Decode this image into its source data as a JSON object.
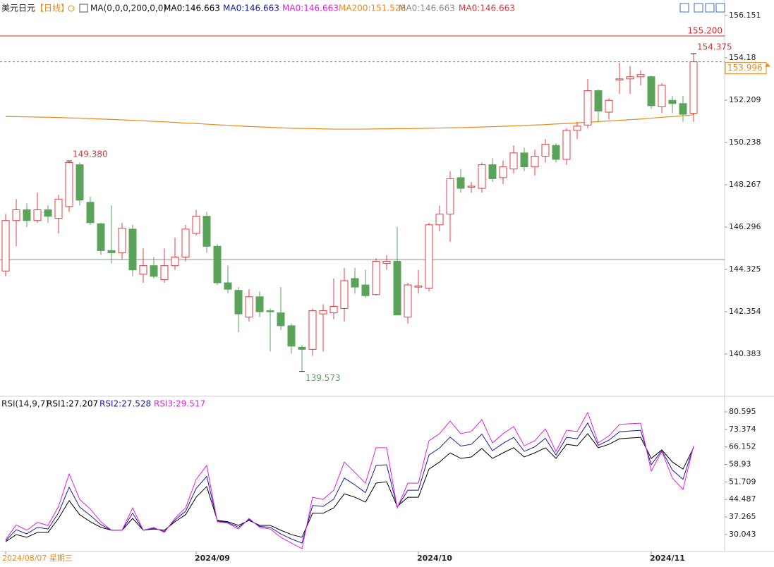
{
  "header": {
    "symbol": "美元日元",
    "period": "【日线】",
    "ma_params": "MA(0,0,0,200,0,0)",
    "ma_values": [
      {
        "label": "MA0:146.663",
        "color": "#000000"
      },
      {
        "label": "MA0:146.663",
        "color": "#1a1aa0"
      },
      {
        "label": "MA0:146.663",
        "color": "#e020e0"
      },
      {
        "label": "MA200:151.526",
        "color": "#e88a1a"
      },
      {
        "label": "MA0:146.663",
        "color": "#8a8a8a"
      },
      {
        "label": "MA0:146.663",
        "color": "#d03a3a"
      }
    ]
  },
  "chart_data": [
    {
      "type": "candlestick",
      "categories": [
        "2024/08/07 星期三",
        null,
        null,
        null,
        null,
        null,
        null,
        null,
        null,
        null,
        null,
        null,
        null,
        null,
        null,
        null,
        null,
        null,
        "2024/09",
        null,
        null,
        null,
        null,
        null,
        null,
        null,
        null,
        null,
        null,
        null,
        null,
        null,
        null,
        null,
        null,
        null,
        null,
        null,
        null,
        "2024/10",
        null,
        null,
        null,
        null,
        null,
        null,
        null,
        null,
        null,
        null,
        null,
        null,
        null,
        null,
        null,
        null,
        null,
        null,
        null,
        null,
        null,
        "2024/11",
        null,
        null,
        null,
        null
      ],
      "open": [
        144.25,
        146.6,
        147.1,
        146.6,
        147.1,
        146.7,
        147.25,
        149.2,
        147.45,
        146.45,
        145.2,
        145.1,
        146.2,
        144.1,
        144.5,
        143.85,
        144.5,
        144.9,
        146.0,
        146.8,
        145.4,
        143.7,
        143.35,
        142.1,
        143.05,
        142.4,
        142.3,
        141.7,
        140.7,
        140.6,
        142.25,
        142.3,
        142.5,
        143.9,
        143.6,
        143.15,
        144.6,
        144.7,
        142.1,
        143.5,
        143.45,
        146.4,
        146.9,
        148.6,
        148.15,
        148.1,
        149.2,
        148.6,
        149.0,
        149.75,
        149.1,
        149.6,
        150.1,
        149.45,
        150.8,
        151.05,
        152.65,
        151.65,
        153.15,
        153.2,
        153.3,
        153.3,
        151.9,
        152.2,
        152.05,
        151.6
      ],
      "high": [
        146.9,
        147.6,
        147.4,
        147.9,
        147.3,
        147.8,
        149.38,
        149.3,
        147.7,
        146.5,
        147.3,
        146.5,
        146.4,
        145.3,
        144.9,
        145.3,
        145.8,
        146.4,
        147.1,
        147.0,
        145.5,
        144.5,
        143.5,
        143.4,
        143.3,
        142.5,
        143.5,
        141.8,
        140.8,
        142.5,
        142.7,
        143.9,
        144.4,
        144.4,
        144.3,
        144.85,
        145.0,
        146.3,
        143.7,
        144.3,
        146.5,
        147.3,
        148.9,
        149.0,
        148.4,
        149.3,
        149.5,
        149.4,
        150.1,
        150.0,
        149.9,
        150.4,
        150.2,
        150.9,
        151.2,
        153.2,
        152.7,
        152.3,
        153.95,
        153.8,
        153.6,
        153.35,
        153.0,
        152.4,
        152.4,
        154.375
      ],
      "low": [
        144.0,
        145.4,
        146.3,
        146.5,
        146.5,
        146.0,
        147.0,
        147.3,
        146.4,
        145.0,
        144.6,
        144.8,
        144.0,
        143.7,
        143.9,
        143.7,
        144.3,
        144.7,
        145.9,
        145.1,
        143.6,
        143.2,
        141.4,
        141.9,
        142.1,
        140.5,
        141.5,
        140.4,
        139.573,
        140.3,
        140.5,
        142.0,
        141.9,
        143.2,
        143.0,
        143.1,
        144.3,
        142.2,
        141.8,
        143.2,
        143.3,
        146.1,
        145.6,
        147.9,
        147.9,
        147.9,
        148.4,
        148.3,
        148.8,
        148.9,
        148.7,
        149.3,
        149.3,
        149.2,
        150.4,
        150.9,
        151.2,
        151.3,
        152.5,
        152.5,
        152.9,
        151.8,
        151.6,
        151.6,
        151.2,
        151.2
      ],
      "close": [
        146.6,
        147.1,
        146.6,
        147.1,
        146.8,
        147.6,
        149.3,
        147.55,
        146.5,
        145.2,
        145.1,
        146.25,
        144.3,
        144.5,
        144.0,
        144.5,
        144.9,
        146.2,
        146.8,
        145.4,
        143.7,
        143.4,
        142.25,
        143.05,
        142.35,
        142.35,
        141.7,
        140.75,
        140.6,
        142.4,
        142.4,
        142.6,
        143.8,
        143.5,
        143.1,
        144.7,
        144.7,
        142.2,
        143.6,
        143.55,
        146.4,
        146.9,
        148.55,
        148.1,
        148.2,
        149.2,
        148.55,
        149.1,
        149.75,
        149.1,
        149.6,
        150.15,
        149.45,
        150.8,
        151.0,
        152.65,
        151.7,
        152.2,
        153.2,
        153.3,
        153.4,
        151.95,
        152.9,
        152.05,
        151.55,
        153.996
      ],
      "up_color": "#e03c3c",
      "down_color": "#5ba35b",
      "ma200": {
        "color": "#e88a1a",
        "values": [
          151.45,
          151.44,
          151.43,
          151.42,
          151.41,
          151.4,
          151.38,
          151.37,
          151.35,
          151.33,
          151.31,
          151.29,
          151.27,
          151.25,
          151.22,
          151.2,
          151.17,
          151.14,
          151.12,
          151.09,
          151.06,
          151.04,
          151.01,
          150.98,
          150.96,
          150.94,
          150.92,
          150.9,
          150.89,
          150.88,
          150.87,
          150.86,
          150.86,
          150.86,
          150.86,
          150.87,
          150.87,
          150.88,
          150.88,
          150.89,
          150.9,
          150.91,
          150.92,
          150.93,
          150.94,
          150.96,
          150.97,
          150.99,
          151.01,
          151.03,
          151.05,
          151.07,
          151.1,
          151.12,
          151.15,
          151.18,
          151.21,
          151.24,
          151.27,
          151.3,
          151.33,
          151.37,
          151.41,
          151.44,
          151.48,
          151.526
        ]
      },
      "hlines": [
        {
          "value": 155.2,
          "label": "155.200",
          "color": "#d42a2a"
        },
        {
          "value": 144.78,
          "color": "#8a8a8a"
        }
      ],
      "last_label": "153.996",
      "annotations": [
        {
          "label": "149.380",
          "value": 149.38,
          "color": "#d03a3a"
        },
        {
          "label": "139.573",
          "value": 139.573,
          "color": "#5ba35b"
        },
        {
          "label": "154.375",
          "value": 154.375,
          "color": "#d03a3a"
        }
      ],
      "ylim": [
        138.477,
        156.611
      ],
      "yticks": [
        156.151,
        154.18,
        152.209,
        150.238,
        148.267,
        146.296,
        144.325,
        142.354,
        140.383
      ]
    },
    {
      "type": "line",
      "title": "RSI(14,9,7)",
      "series": [
        {
          "name": "RSI1:27.207",
          "color": "#000000",
          "values": [
            27.1,
            30,
            28.9,
            30.9,
            30.9,
            36.7,
            44,
            38.2,
            35.3,
            33,
            31.8,
            31.8,
            36.7,
            31.8,
            32.3,
            31.8,
            35.3,
            38.2,
            45.4,
            49.8,
            35.9,
            35.3,
            33.8,
            35.9,
            33.8,
            33.8,
            31.8,
            30,
            28.9,
            38.8,
            38.8,
            41,
            46.8,
            45.4,
            43.4,
            51.2,
            51.8,
            41.6,
            45.4,
            45.4,
            57,
            59.9,
            63.7,
            61.4,
            62,
            65.5,
            61.4,
            63.7,
            65.8,
            62,
            63.7,
            65.8,
            61.4,
            67.2,
            66.6,
            71.6,
            65.8,
            67.2,
            69.5,
            69.8,
            70.1,
            61.4,
            64.9,
            59.9,
            57,
            65.8
          ]
        },
        {
          "name": "RSI2:27.528",
          "color": "#1a1aa0",
          "values": [
            27.5,
            32,
            30.3,
            33,
            32.3,
            39,
            49.5,
            41.3,
            37.9,
            34.1,
            31.8,
            31.8,
            38.8,
            31.8,
            32.6,
            31.3,
            36,
            39.6,
            49,
            54,
            35.6,
            35,
            33,
            36.3,
            33.4,
            33,
            30.3,
            28.2,
            26.5,
            42,
            41.6,
            44.6,
            53.3,
            50.5,
            47.3,
            58.5,
            58.8,
            41.3,
            48.3,
            48.3,
            62.8,
            65.7,
            70.2,
            66.5,
            67.2,
            71.4,
            64.6,
            67.6,
            70.1,
            64.3,
            66.2,
            69.7,
            62.8,
            70.1,
            69.5,
            76,
            66.8,
            68.9,
            72.4,
            72.7,
            73,
            58.8,
            64.6,
            56.6,
            52.8,
            66.2
          ]
        },
        {
          "name": "RSI3:29.517",
          "color": "#e020e0",
          "values": [
            28,
            34,
            31.8,
            35,
            33.8,
            41.6,
            55,
            44.5,
            40.5,
            35.3,
            31.8,
            31.8,
            41,
            31.8,
            33,
            30.9,
            36.7,
            41,
            52.7,
            58.5,
            35.3,
            34.7,
            32.3,
            36.7,
            33,
            32.3,
            28.9,
            26.5,
            24.2,
            45.4,
            44.5,
            48.3,
            59.9,
            55.6,
            51.2,
            65.8,
            65.8,
            41,
            51.2,
            51.2,
            68.7,
            71.6,
            76.8,
            71.6,
            72.5,
            77.4,
            67.8,
            71.6,
            74.5,
            66.6,
            68.7,
            73.6,
            64.3,
            73,
            72.5,
            80.3,
            67.8,
            70.7,
            75.4,
            75.7,
            75.9,
            56.2,
            64.3,
            53.3,
            48.6,
            66.6
          ]
        }
      ],
      "ylim": [
        23.62,
        86.12
      ],
      "yticks": [
        80.595,
        73.374,
        66.152,
        58.93,
        51.709,
        44.487,
        37.265,
        30.043
      ]
    }
  ]
}
